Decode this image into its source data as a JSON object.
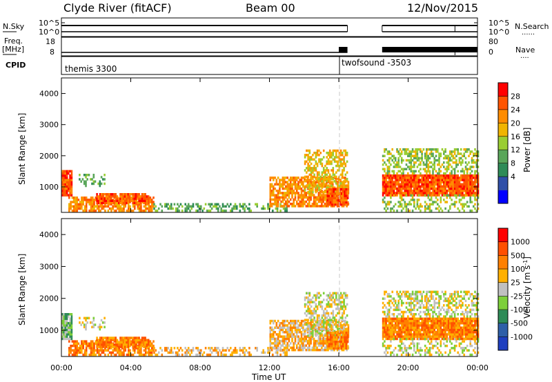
{
  "header": {
    "station": "Clyde River (fitACF)",
    "beam": "Beam 00",
    "date": "12/Nov/2015"
  },
  "left_labels": {
    "nsky": "N.Sky",
    "freq_top": "Freq.",
    "freq_unit": "[MHz]",
    "cpid": "CPID"
  },
  "right_labels": {
    "nsearch": "N.Search",
    "nave": "Nave"
  },
  "cpid_labels": [
    "themis 3300",
    "twofsound -3503"
  ],
  "colors": {
    "power_scale": [
      "#0000ff",
      "#2f4fa8",
      "#2e8b57",
      "#5aa65a",
      "#9acd32",
      "#f0b400",
      "#ff8c00",
      "#ff5500",
      "#ff0000"
    ],
    "velocity_scale": [
      "#1f3fbf",
      "#2e5fa8",
      "#2e8b57",
      "#7dcf3a",
      "#c0c0c0",
      "#ffb000",
      "#ff8000",
      "#ff5000",
      "#ff0000"
    ]
  },
  "chart_data": [
    {
      "type": "line",
      "name": "noise",
      "yticks_left": [
        "10^5",
        "10^0"
      ],
      "yticks_right": [
        "10^5",
        "10^0"
      ],
      "x": [
        0,
        16.5,
        18.5,
        24
      ],
      "segments": [
        [
          0.0,
          16.5
        ],
        [
          18.5,
          24.0
        ]
      ]
    },
    {
      "type": "line",
      "name": "frequency_nave",
      "yticks_left": [
        "18",
        "8"
      ],
      "yticks_right": [
        "80",
        "0"
      ],
      "segments": [
        [
          0.0,
          16.5
        ],
        [
          18.5,
          24.0
        ]
      ]
    },
    {
      "type": "heatmap",
      "name": "power",
      "ylabel": "Slant Range [km]",
      "yticks": [
        "4000",
        "3000",
        "2000",
        "1000"
      ],
      "ylim": [
        180,
        4500
      ],
      "colorbar_label": "Power [dB]",
      "colorbar_ticks": [
        "28",
        "24",
        "20",
        "16",
        "12",
        "8",
        "4"
      ],
      "clim": [
        0,
        32
      ]
    },
    {
      "type": "heatmap",
      "name": "velocity",
      "ylabel": "Slant Range [km]",
      "yticks": [
        "4000",
        "3000",
        "2000",
        "1000"
      ],
      "ylim": [
        180,
        4500
      ],
      "colorbar_label": "Velocity [m s",
      "colorbar_label_sup": "-1",
      "colorbar_label_end": "]",
      "colorbar_ticks": [
        "1000",
        "500",
        "100",
        "25",
        "-25",
        "-100",
        "-500",
        "-1000"
      ]
    }
  ],
  "xaxis": {
    "ticks": [
      "00:00",
      "04:00",
      "08:00",
      "12:00",
      "16:00",
      "20:00",
      "00:00"
    ],
    "label": "Time UT",
    "xlim_hours": [
      0,
      24
    ]
  }
}
